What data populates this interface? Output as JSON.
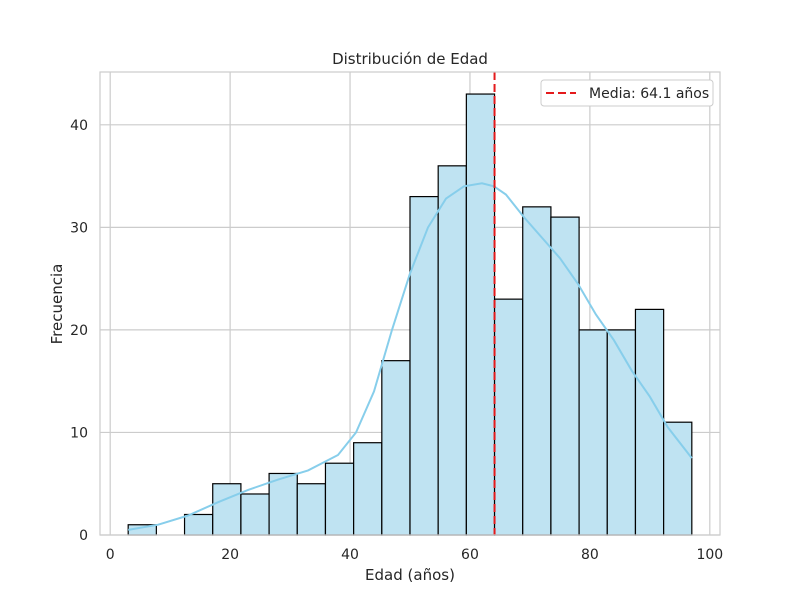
{
  "chart_data": {
    "type": "bar",
    "title": "Distribución de Edad",
    "xlabel": "Edad (años)",
    "ylabel": "Frecuencia",
    "xlim": [
      -1.7,
      101.7
    ],
    "ylim": [
      0,
      45.15
    ],
    "xticks": [
      0,
      20,
      40,
      60,
      80,
      100
    ],
    "yticks": [
      0,
      10,
      20,
      30,
      40
    ],
    "grid": true,
    "legend_position": "top-right",
    "bins": [
      {
        "start": 3.0,
        "end": 7.7,
        "count": 1
      },
      {
        "start": 7.7,
        "end": 12.4,
        "count": 0
      },
      {
        "start": 12.4,
        "end": 17.1,
        "count": 2
      },
      {
        "start": 17.1,
        "end": 21.8,
        "count": 5
      },
      {
        "start": 21.8,
        "end": 26.5,
        "count": 4
      },
      {
        "start": 26.5,
        "end": 31.2,
        "count": 6
      },
      {
        "start": 31.2,
        "end": 35.9,
        "count": 5
      },
      {
        "start": 35.9,
        "end": 40.6,
        "count": 7
      },
      {
        "start": 40.6,
        "end": 45.3,
        "count": 9
      },
      {
        "start": 45.3,
        "end": 50.0,
        "count": 17
      },
      {
        "start": 50.0,
        "end": 54.7,
        "count": 33
      },
      {
        "start": 54.7,
        "end": 59.4,
        "count": 36
      },
      {
        "start": 59.4,
        "end": 64.1,
        "count": 43
      },
      {
        "start": 64.1,
        "end": 68.8,
        "count": 23
      },
      {
        "start": 68.8,
        "end": 73.5,
        "count": 32
      },
      {
        "start": 73.5,
        "end": 78.2,
        "count": 31
      },
      {
        "start": 78.2,
        "end": 82.9,
        "count": 20
      },
      {
        "start": 82.9,
        "end": 87.6,
        "count": 20
      },
      {
        "start": 87.6,
        "end": 92.3,
        "count": 22
      },
      {
        "start": 92.3,
        "end": 97.0,
        "count": 11
      }
    ],
    "kde": {
      "x": [
        3,
        8,
        13,
        18,
        23,
        28,
        33,
        38,
        41,
        44,
        47,
        50,
        53,
        56,
        59,
        62,
        64,
        66,
        69,
        72,
        75,
        78,
        81,
        84,
        87,
        90,
        93,
        97
      ],
      "y": [
        0.5,
        1.0,
        1.9,
        3.2,
        4.4,
        5.4,
        6.3,
        7.8,
        10.0,
        14.0,
        20.0,
        25.5,
        30.0,
        32.8,
        34.0,
        34.3,
        34.0,
        33.2,
        31.0,
        29.0,
        27.0,
        24.5,
        21.5,
        19.0,
        16.0,
        13.5,
        10.5,
        7.5
      ]
    },
    "mean": {
      "value": 64.1,
      "label": "Media: 64.1 años"
    },
    "colors": {
      "bar_fill": "#bfe3f2",
      "bar_edge": "#000000",
      "kde_line": "#87ceeb",
      "mean_line": "#e41a1c",
      "grid": "#cccccc",
      "spine": "#cccccc",
      "text": "#262626"
    }
  }
}
